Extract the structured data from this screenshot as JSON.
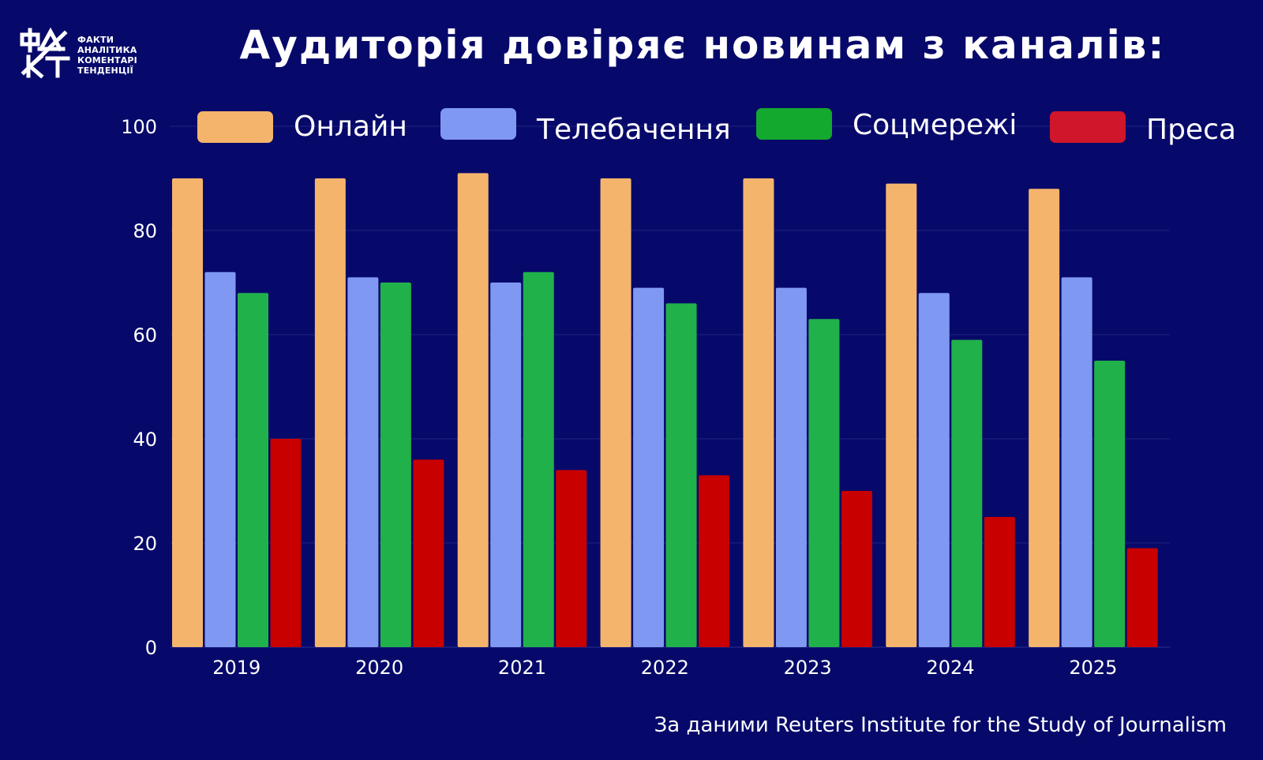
{
  "header": {
    "logo_lines": [
      "ФАКТИ",
      "АНАЛІТИКА",
      "КОМЕНТАРІ",
      "ТЕНДЕНЦІЇ"
    ]
  },
  "source_note": "За даними Reuters Institute for the Study of Journalism",
  "chart_data": {
    "type": "bar",
    "title": "Аудиторія довіряє новинам з каналів:",
    "xlabel": "",
    "ylabel": "",
    "categories": [
      "2019",
      "2020",
      "2021",
      "2022",
      "2023",
      "2024",
      "2025"
    ],
    "series": [
      {
        "name": "Онлайн",
        "color": "#f4b46c",
        "values": [
          90,
          90,
          91,
          90,
          90,
          89,
          88
        ]
      },
      {
        "name": "Телебачення",
        "color": "#7f98f2",
        "values": [
          72,
          71,
          70,
          69,
          69,
          68,
          71
        ]
      },
      {
        "name": "Соцмережі",
        "color": "#21b14b",
        "values": [
          68,
          70,
          72,
          66,
          63,
          59,
          55
        ]
      },
      {
        "name": "Преса",
        "color": "#c80000",
        "values": [
          40,
          36,
          34,
          33,
          30,
          25,
          19
        ]
      }
    ],
    "ylim": [
      0,
      100
    ],
    "yticks": [
      0,
      20,
      40,
      60,
      80,
      100
    ],
    "grid": true,
    "legend": "top",
    "legend_swatch_colors": [
      "#f4b46c",
      "#7f98f2",
      "#13a82e",
      "#d0162a"
    ]
  }
}
